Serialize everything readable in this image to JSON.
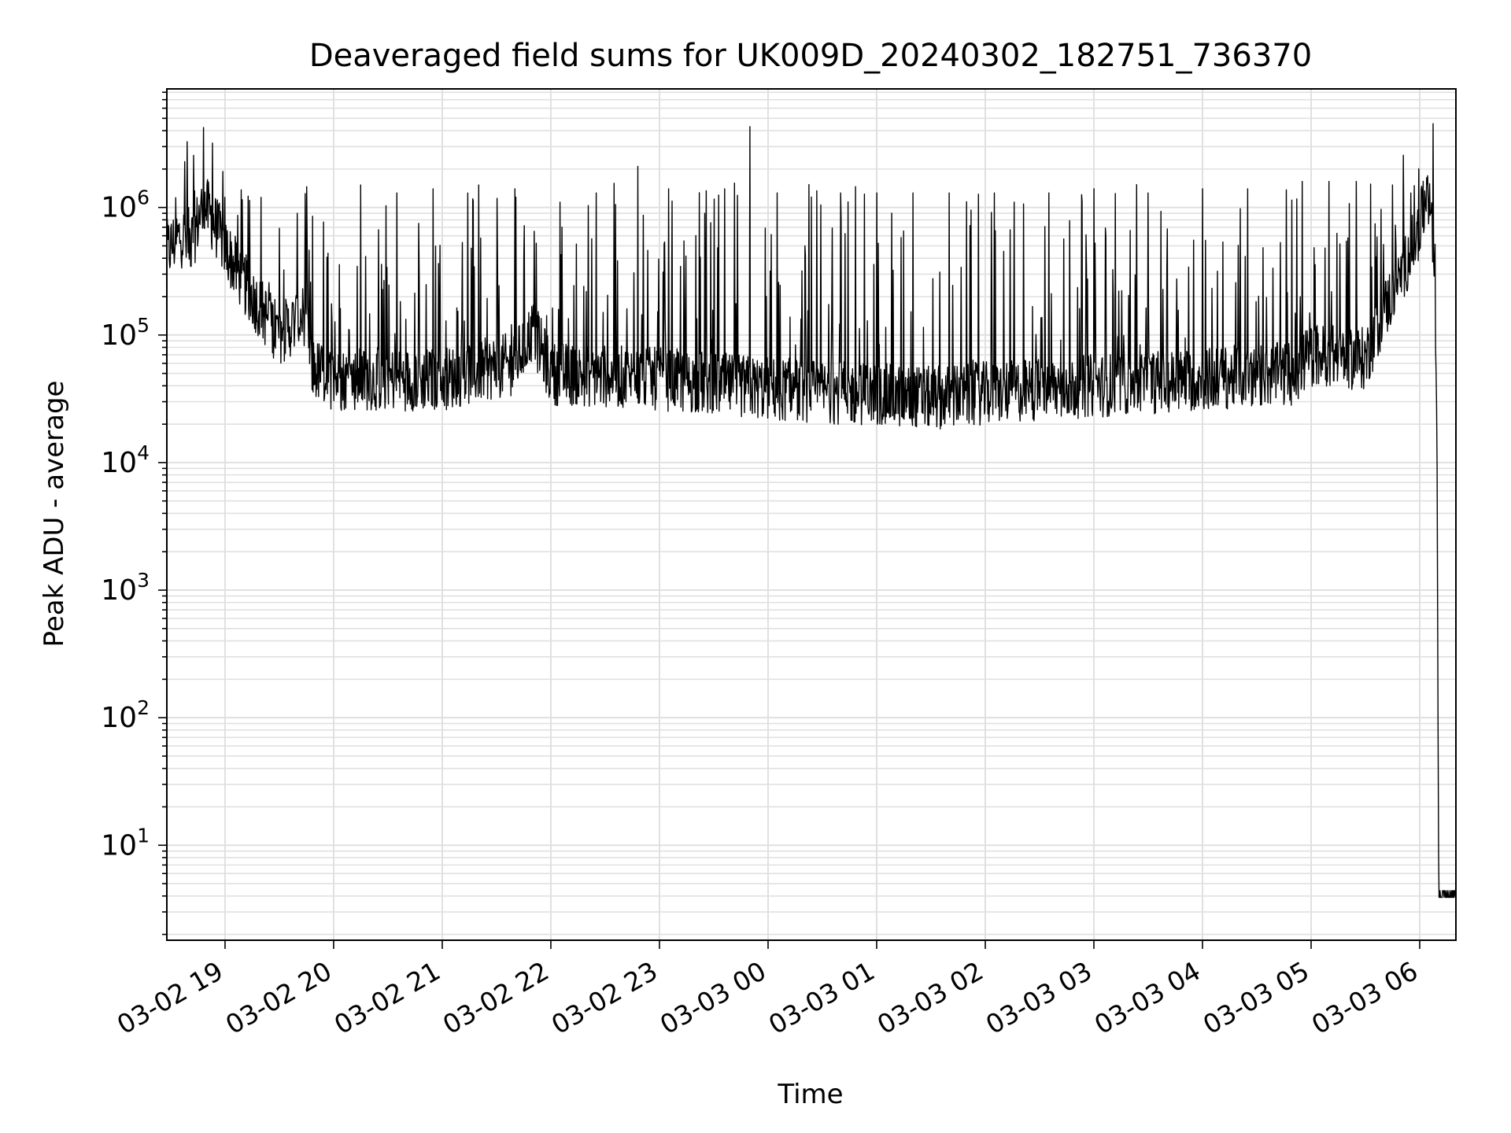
{
  "chart_data": {
    "type": "line",
    "title": "Deaveraged field sums for UK009D_20240302_182751_736370",
    "xlabel": "Time",
    "ylabel": "Peak ADU - average",
    "y_scale": "log",
    "ylim": [
      1.8,
      8500000
    ],
    "xlim": [
      "2024-03-02T18:27:51",
      "2024-03-03T06:20:00"
    ],
    "grid": true,
    "legend": "none",
    "colors": {
      "line": "#000000",
      "grid": "#e0e0e0",
      "axes": "#000000"
    },
    "x_ticks": [
      {
        "t": "2024-03-02T19:00:00",
        "label": "03-02 19"
      },
      {
        "t": "2024-03-02T20:00:00",
        "label": "03-02 20"
      },
      {
        "t": "2024-03-02T21:00:00",
        "label": "03-02 21"
      },
      {
        "t": "2024-03-02T22:00:00",
        "label": "03-02 22"
      },
      {
        "t": "2024-03-02T23:00:00",
        "label": "03-02 23"
      },
      {
        "t": "2024-03-03T00:00:00",
        "label": "03-03 00"
      },
      {
        "t": "2024-03-03T01:00:00",
        "label": "03-03 01"
      },
      {
        "t": "2024-03-03T02:00:00",
        "label": "03-03 02"
      },
      {
        "t": "2024-03-03T03:00:00",
        "label": "03-03 03"
      },
      {
        "t": "2024-03-03T04:00:00",
        "label": "03-03 04"
      },
      {
        "t": "2024-03-03T05:00:00",
        "label": "03-03 05"
      },
      {
        "t": "2024-03-03T06:00:00",
        "label": "03-03 06"
      }
    ],
    "y_ticks": [
      {
        "value": 10,
        "base": "10",
        "exp": "1"
      },
      {
        "value": 100,
        "base": "10",
        "exp": "2"
      },
      {
        "value": 1000,
        "base": "10",
        "exp": "3"
      },
      {
        "value": 10000,
        "base": "10",
        "exp": "4"
      },
      {
        "value": 100000,
        "base": "10",
        "exp": "5"
      },
      {
        "value": 1000000,
        "base": "10",
        "exp": "6"
      }
    ],
    "series": [
      {
        "baseline": [
          [
            "2024-03-02T18:27:51",
            450000
          ],
          [
            "2024-03-02T18:35:00",
            600000
          ],
          [
            "2024-03-02T18:42:00",
            550000
          ],
          [
            "2024-03-02T18:48:00",
            1100000
          ],
          [
            "2024-03-02T18:55:00",
            700000
          ],
          [
            "2024-03-02T19:05:00",
            350000
          ],
          [
            "2024-03-02T19:15:00",
            200000
          ],
          [
            "2024-03-02T19:30:00",
            100000
          ],
          [
            "2024-03-02T19:45:00",
            150000
          ],
          [
            "2024-03-02T19:48:00",
            55000
          ],
          [
            "2024-03-02T20:00:00",
            45000
          ],
          [
            "2024-03-02T21:00:00",
            45000
          ],
          [
            "2024-03-02T21:40:00",
            60000
          ],
          [
            "2024-03-02T21:50:00",
            110000
          ],
          [
            "2024-03-02T22:00:00",
            50000
          ],
          [
            "2024-03-02T23:00:00",
            45000
          ],
          [
            "2024-03-03T00:00:00",
            38000
          ],
          [
            "2024-03-03T01:00:00",
            34000
          ],
          [
            "2024-03-03T01:30:00",
            32000
          ],
          [
            "2024-03-03T02:00:00",
            35000
          ],
          [
            "2024-03-03T03:00:00",
            40000
          ],
          [
            "2024-03-03T04:00:00",
            45000
          ],
          [
            "2024-03-03T04:50:00",
            50000
          ],
          [
            "2024-03-03T05:00:00",
            70000
          ],
          [
            "2024-03-03T05:30:00",
            65000
          ],
          [
            "2024-03-03T05:40:00",
            150000
          ],
          [
            "2024-03-03T05:50:00",
            300000
          ],
          [
            "2024-03-03T06:00:00",
            700000
          ],
          [
            "2024-03-03T06:03:00",
            1100000
          ],
          [
            "2024-03-03T06:06:00",
            900000
          ],
          [
            "2024-03-03T06:08:00",
            450000
          ],
          [
            "2024-03-03T06:09:30",
            20000
          ],
          [
            "2024-03-03T06:10:30",
            4
          ],
          [
            "2024-03-03T06:20:00",
            4
          ]
        ],
        "spikes": [
          [
            "2024-03-02T18:53:00",
            3200000
          ],
          [
            "2024-03-02T19:00:00",
            1200000
          ],
          [
            "2024-03-02T19:20:00",
            1200000
          ],
          [
            "2024-03-02T19:40:00",
            900000
          ],
          [
            "2024-03-02T20:15:00",
            1500000
          ],
          [
            "2024-03-02T20:35:00",
            1300000
          ],
          [
            "2024-03-02T20:55:00",
            1400000
          ],
          [
            "2024-03-02T21:20:00",
            1500000
          ],
          [
            "2024-03-02T21:40:00",
            1400000
          ],
          [
            "2024-03-02T22:05:00",
            1100000
          ],
          [
            "2024-03-02T22:25:00",
            1300000
          ],
          [
            "2024-03-02T22:48:00",
            2100000
          ],
          [
            "2024-03-02T23:05:00",
            1400000
          ],
          [
            "2024-03-02T23:25:00",
            900000
          ],
          [
            "2024-03-02T23:36:00",
            1400000
          ],
          [
            "2024-03-02T23:50:00",
            4300000
          ],
          [
            "2024-03-03T00:05:00",
            1300000
          ],
          [
            "2024-03-03T00:40:00",
            1300000
          ],
          [
            "2024-03-03T01:00:00",
            1300000
          ],
          [
            "2024-03-03T01:20:00",
            1300000
          ],
          [
            "2024-03-03T01:40:00",
            1300000
          ],
          [
            "2024-03-03T02:05:00",
            1300000
          ],
          [
            "2024-03-03T02:35:00",
            1300000
          ],
          [
            "2024-03-03T03:00:00",
            1400000
          ],
          [
            "2024-03-03T03:30:00",
            1300000
          ],
          [
            "2024-03-03T04:00:00",
            1400000
          ],
          [
            "2024-03-03T04:25:00",
            1400000
          ],
          [
            "2024-03-03T04:55:00",
            1600000
          ],
          [
            "2024-03-03T05:10:00",
            1600000
          ],
          [
            "2024-03-03T05:25:00",
            1600000
          ],
          [
            "2024-03-03T05:45:00",
            1500000
          ]
        ]
      }
    ]
  }
}
